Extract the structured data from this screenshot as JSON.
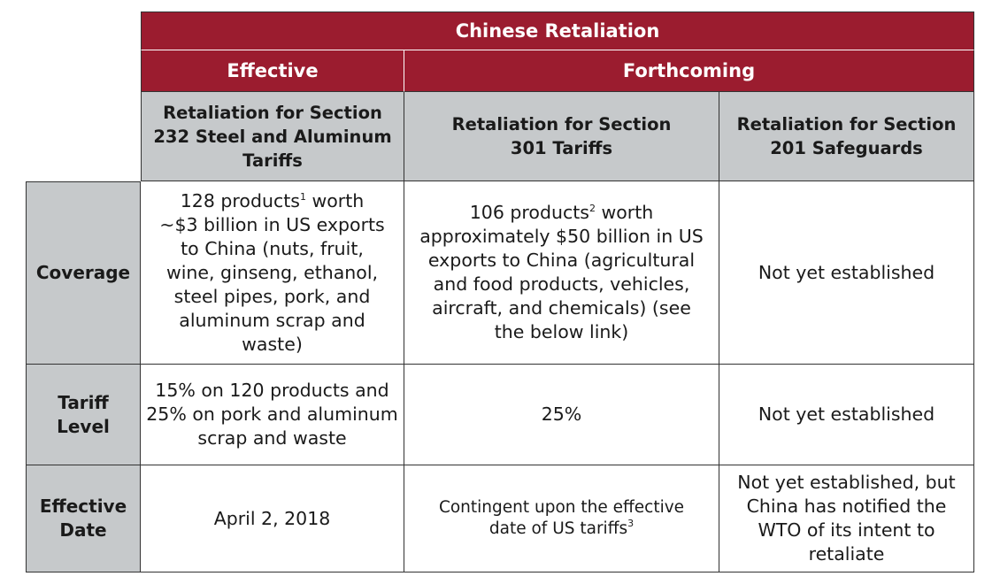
{
  "header": {
    "title": "Chinese Retaliation",
    "groups": {
      "effective": "Effective",
      "forthcoming": "Forthcoming"
    },
    "columns": [
      "Retaliation for Section 232 Steel and Aluminum Tariffs",
      "Retaliation for Section 301 Tariffs",
      "Retaliation for Section 201 Safeguards"
    ]
  },
  "rows": {
    "coverage": {
      "label": "Coverage",
      "c1_pre": "128 products",
      "c1_sup": "1",
      "c1_post": " worth ~$3 billion in US exports to China (nuts, fruit, wine, ginseng, ethanol, steel pipes, pork, and aluminum scrap and waste)",
      "c2_pre": "106 products",
      "c2_sup": "2",
      "c2_post": " worth approximately $50 billion in US exports to China (agricultural and food products, vehicles, aircraft, and chemicals) (see the below link)",
      "c3": "Not yet established"
    },
    "tariff": {
      "label": "Tariff Level",
      "c1": "15% on 120 products and 25% on pork and aluminum scrap and waste",
      "c2": "25%",
      "c3": "Not yet established"
    },
    "date": {
      "label": "Effective Date",
      "c1": "April 2, 2018",
      "c2_pre": "Contingent upon the effective date of US tariffs",
      "c2_sup": "3",
      "c3": "Not yet established, but China has notified the WTO of its intent to retaliate"
    }
  },
  "colors": {
    "header_red": "#9b1c2f",
    "header_grey": "#c6c9cb"
  }
}
